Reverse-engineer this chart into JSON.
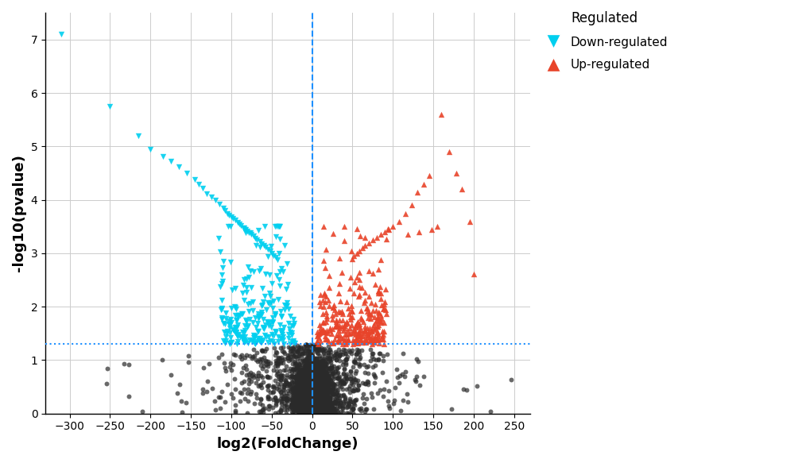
{
  "xlabel": "log2(FoldChange)",
  "ylabel": "-log10(pvalue)",
  "xlim": [
    -330,
    270
  ],
  "ylim": [
    0,
    7.5
  ],
  "xticks": [
    -300,
    -250,
    -200,
    -150,
    -100,
    -50,
    0,
    50,
    100,
    150,
    200,
    250
  ],
  "yticks": [
    0,
    1,
    2,
    3,
    4,
    5,
    6,
    7
  ],
  "hline_y": 1.3,
  "vline_x": 0,
  "down_color": "#00CFEF",
  "up_color": "#E8442A",
  "ns_color": "#2a2a2a",
  "legend_title": "Regulated",
  "legend_down": "Down-regulated",
  "legend_up": "Up-regulated",
  "background_color": "#ffffff",
  "grid_color": "#cccccc",
  "dashed_line_color": "#1E90FF",
  "seed": 42
}
